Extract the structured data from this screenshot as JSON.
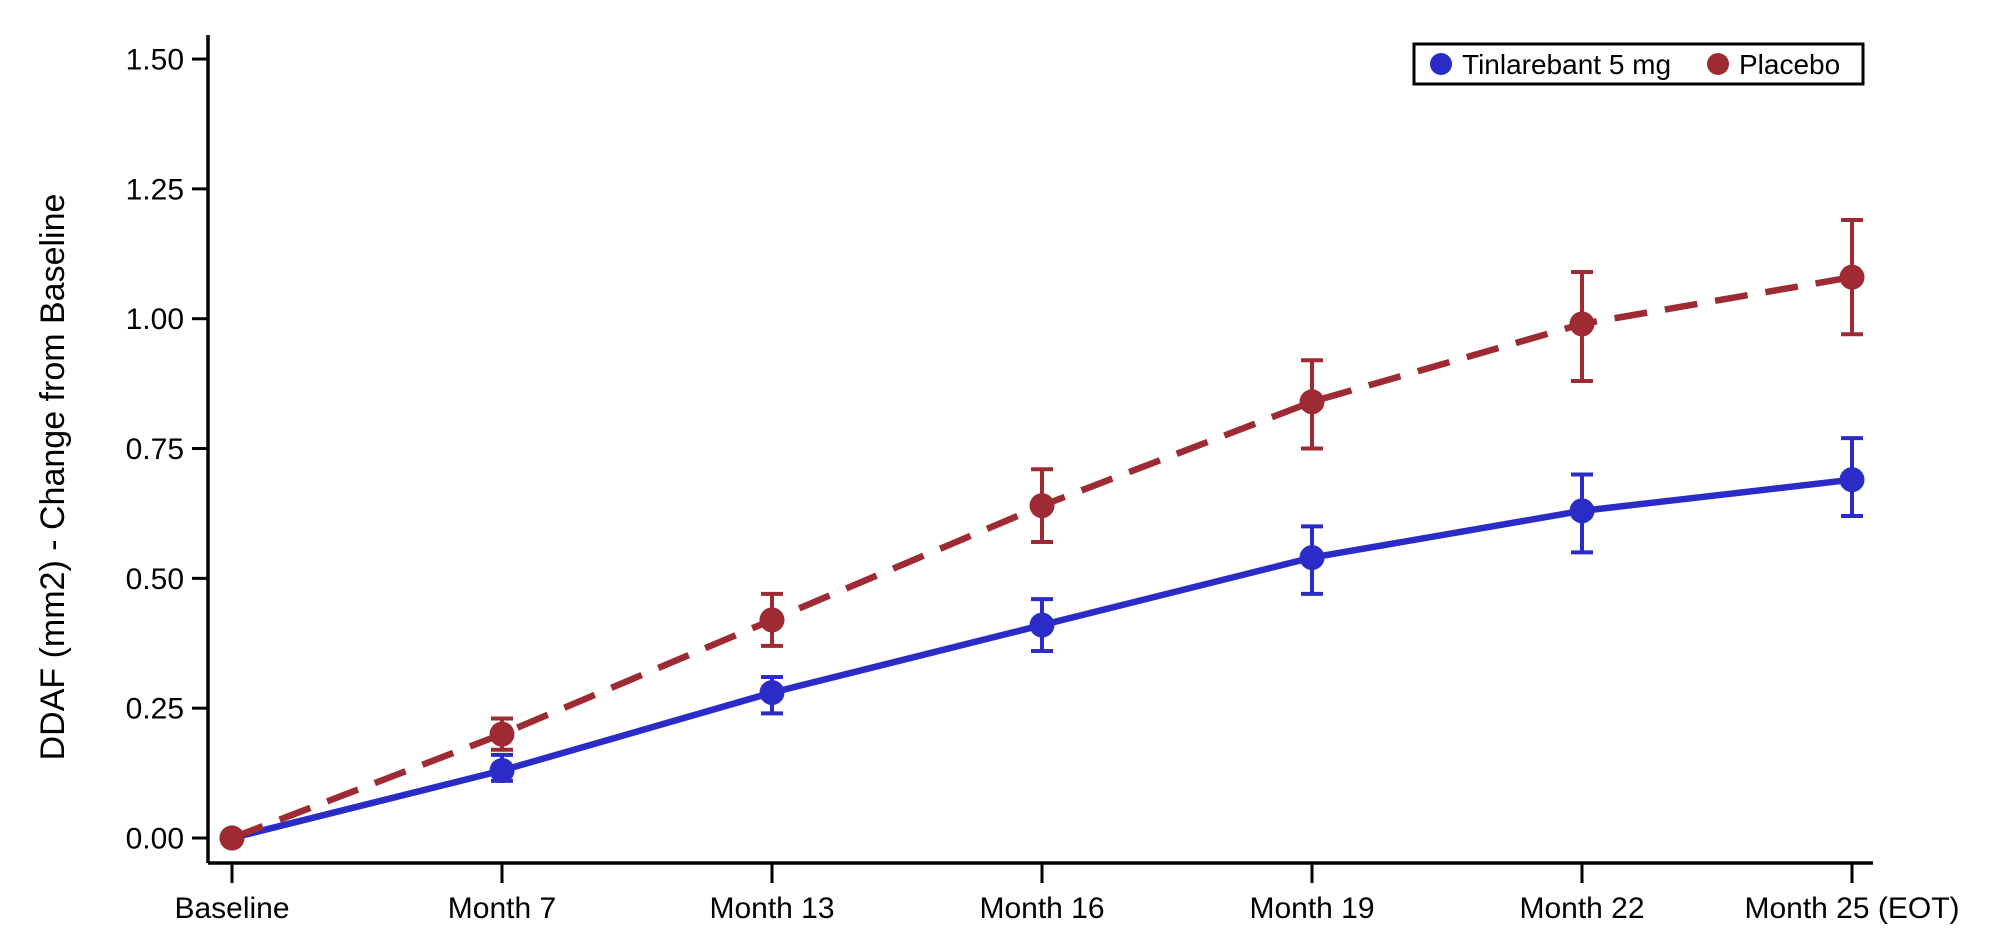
{
  "chart_data": {
    "type": "line",
    "title": "",
    "xlabel": "",
    "ylabel": "DDAF (mm2) - Change from Baseline",
    "categories": [
      "Baseline",
      "Month 7",
      "Month 13",
      "Month 16",
      "Month 19",
      "Month 22",
      "Month 25 (EOT)"
    ],
    "ylim": [
      0.0,
      1.5
    ],
    "yticks": [
      0.0,
      0.25,
      0.5,
      0.75,
      1.0,
      1.25,
      1.5
    ],
    "ytick_labels": [
      "0.00",
      "0.25",
      "0.50",
      "0.75",
      "1.00",
      "1.25",
      "1.50"
    ],
    "grid": false,
    "legend_position": "top-right",
    "axis_color": "#000000",
    "series": [
      {
        "name": "Tinlarebant 5 mg",
        "color": "#2B2BC8",
        "line_style": "solid",
        "marker": "circle",
        "values": [
          0.0,
          0.13,
          0.28,
          0.41,
          0.54,
          0.63,
          0.69
        ],
        "ci_lower": [
          null,
          0.11,
          0.24,
          0.36,
          0.47,
          0.55,
          0.62
        ],
        "ci_upper": [
          null,
          0.16,
          0.31,
          0.46,
          0.6,
          0.7,
          0.77
        ]
      },
      {
        "name": "Placebo",
        "color": "#9E2A33",
        "line_style": "dashed",
        "marker": "circle",
        "values": [
          0.0,
          0.2,
          0.42,
          0.64,
          0.84,
          0.99,
          1.08
        ],
        "ci_lower": [
          null,
          0.17,
          0.37,
          0.57,
          0.75,
          0.88,
          0.97
        ],
        "ci_upper": [
          null,
          0.23,
          0.47,
          0.71,
          0.92,
          1.09,
          1.19
        ]
      }
    ]
  },
  "legend": {
    "items": [
      {
        "label": "Tinlarebant 5 mg",
        "color": "#2B2BC8"
      },
      {
        "label": "Placebo",
        "color": "#9E2A33"
      }
    ]
  }
}
